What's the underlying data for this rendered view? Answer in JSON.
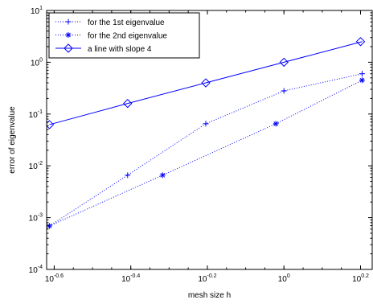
{
  "chart_data": {
    "type": "line",
    "xscale": "log",
    "yscale": "log",
    "xlim": [
      0.24,
      1.7
    ],
    "ylim": [
      0.0001,
      10
    ],
    "xlabel": "mesh size h",
    "ylabel": "error of eigenvalue",
    "grid": false,
    "legend_position": "top-left",
    "x_ticks": [
      {
        "value": 0.2512,
        "base": "10",
        "exp": "-0.6"
      },
      {
        "value": 0.3981,
        "base": "10",
        "exp": "-0.4"
      },
      {
        "value": 0.631,
        "base": "10",
        "exp": "-0.2"
      },
      {
        "value": 1.0,
        "base": "10",
        "exp": "0"
      },
      {
        "value": 1.5849,
        "base": "10",
        "exp": "0.2"
      }
    ],
    "y_ticks": [
      {
        "value": 0.0001,
        "base": "10",
        "exp": "-4"
      },
      {
        "value": 0.001,
        "base": "10",
        "exp": "-3"
      },
      {
        "value": 0.01,
        "base": "10",
        "exp": "-2"
      },
      {
        "value": 0.1,
        "base": "10",
        "exp": "-1"
      },
      {
        "value": 1,
        "base": "10",
        "exp": "0"
      },
      {
        "value": 10,
        "base": "10",
        "exp": "1"
      }
    ],
    "series": [
      {
        "name": "for the 1st eigenvalue",
        "marker": "plus",
        "linestyle": "dotted",
        "color": "#0000ff",
        "x": [
          0.2441,
          0.3906,
          0.625,
          1.0,
          1.6
        ],
        "y": [
          0.00069,
          0.0066,
          0.065,
          0.28,
          0.6
        ]
      },
      {
        "name": "for the 2nd eigenvalue",
        "marker": "asterisk",
        "linestyle": "dotted",
        "color": "#0000ff",
        "x": [
          0.2441,
          0.4821,
          0.9526,
          1.6
        ],
        "y": [
          0.00069,
          0.0066,
          0.065,
          0.45
        ]
      },
      {
        "name": "a line with slope 4",
        "marker": "diamond",
        "linestyle": "solid",
        "color": "#0000ff",
        "x": [
          0.2441,
          0.3906,
          0.625,
          1.0,
          1.6
        ],
        "y": [
          0.0625,
          0.16,
          0.4,
          1.0,
          2.5
        ],
        "marker_x": [
          0.2441,
          0.3906,
          0.625,
          1.0,
          1.5849
        ]
      }
    ],
    "colors": {
      "series": "#0000ff",
      "axis": "#000000",
      "background": "#ffffff"
    }
  }
}
